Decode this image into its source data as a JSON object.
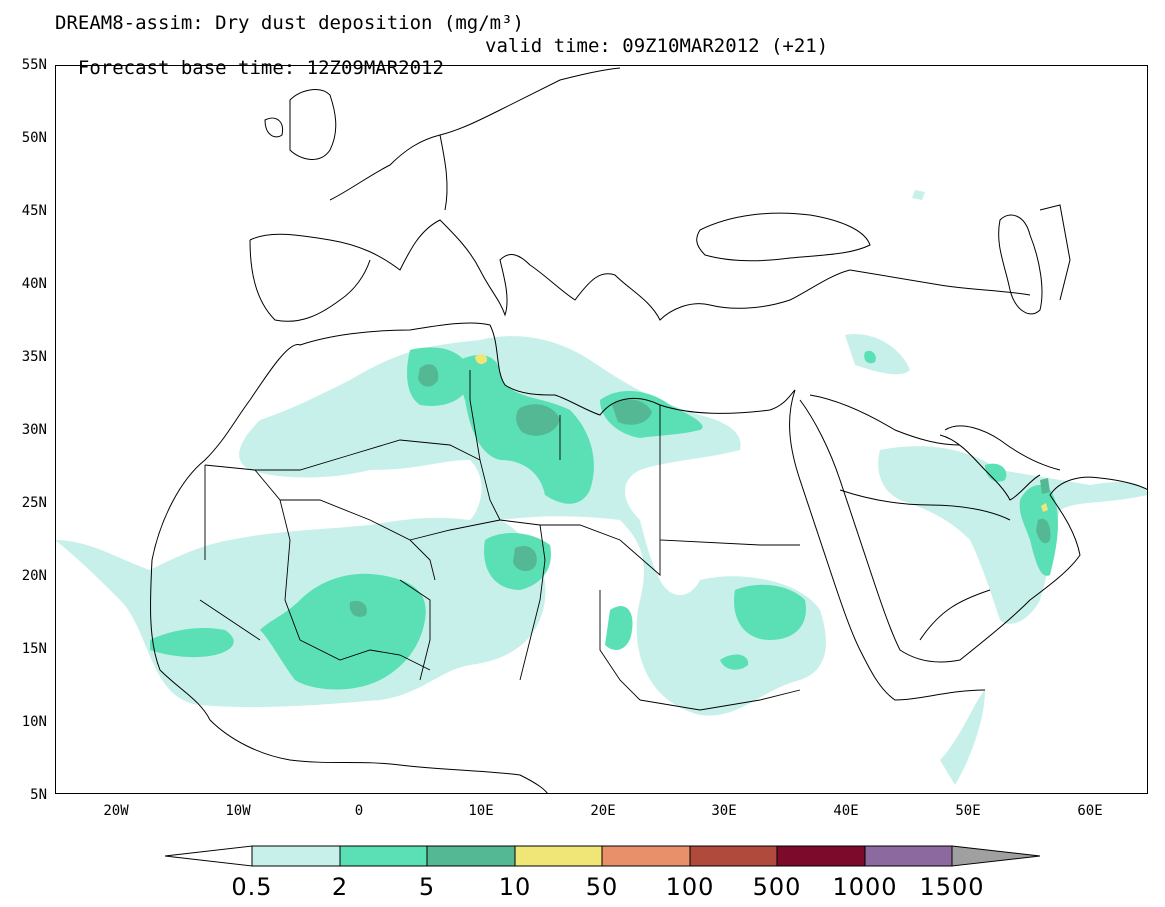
{
  "title": {
    "line1": "DREAM8-assim: Dry dust deposition (mg/m³)",
    "line2_left": "Forecast base time: 12Z09MAR2012",
    "line2_right": "valid time: 09Z10MAR2012 (+21)"
  },
  "axes": {
    "lat_labels": [
      "55N",
      "50N",
      "45N",
      "40N",
      "35N",
      "30N",
      "25N",
      "20N",
      "15N",
      "10N",
      "5N"
    ],
    "lon_labels": [
      "20W",
      "10W",
      "0",
      "10E",
      "20E",
      "30E",
      "40E",
      "50E",
      "60E"
    ]
  },
  "legend": {
    "levels": [
      "0.5",
      "2",
      "5",
      "10",
      "50",
      "100",
      "500",
      "1000",
      "1500"
    ],
    "colors": [
      "#c8f0ea",
      "#5ae0b4",
      "#55b894",
      "#f0e678",
      "#e8906a",
      "#b04a3c",
      "#7c0a2a",
      "#8c6aa0",
      "#a0a0a0"
    ]
  },
  "colors": {
    "bin1": "#c8f0ea",
    "bin2": "#5ae0b4",
    "bin3": "#55b894",
    "bin4": "#f0e678",
    "coast": "#000000"
  }
}
